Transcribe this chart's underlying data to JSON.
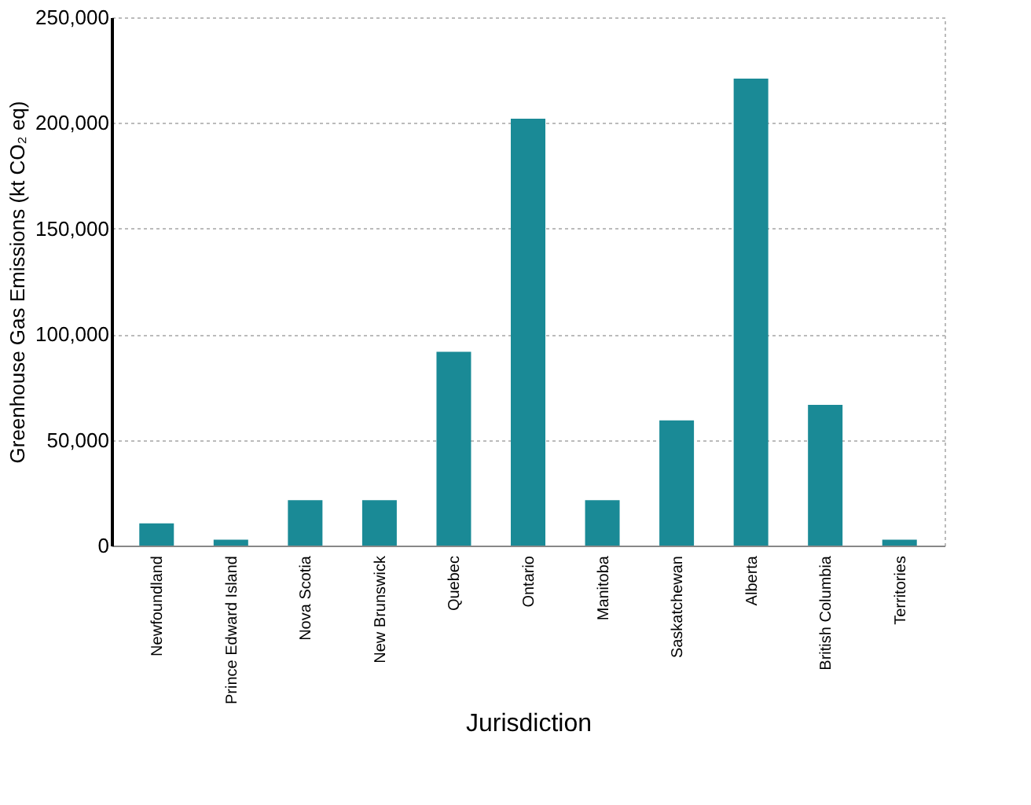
{
  "chart_data": {
    "type": "bar",
    "xlabel": "Jurisdiction",
    "ylabel": "Greenhouse Gas Emissions (kt CO₂ eq)",
    "categories": [
      "Newfoundland",
      "Prince Edward Island",
      "Nova Scotia",
      "New Brunswick",
      "Quebec",
      "Ontario",
      "Manitoba",
      "Saskatchewan",
      "Alberta",
      "British Columbia",
      "Territories"
    ],
    "values": [
      10500,
      2800,
      21500,
      21500,
      91700,
      202000,
      21500,
      59200,
      221000,
      66600,
      2800
    ],
    "color": "#1a8a96",
    "ylim": [
      0,
      250000
    ],
    "yticks": [
      0,
      {
        "value": 50000,
        "label": "50,000"
      },
      {
        "value": 100000,
        "label": "100,000"
      },
      {
        "value": 150000,
        "label": "150,000"
      },
      {
        "value": 200000,
        "label": "200,000"
      },
      {
        "value": 250000,
        "label": "250,000"
      }
    ],
    "grid": "y"
  }
}
